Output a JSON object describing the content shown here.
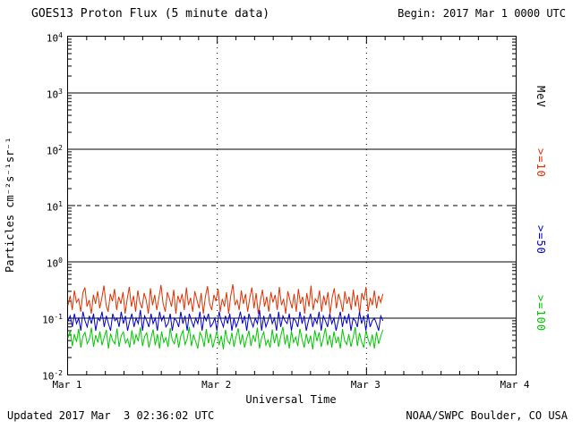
{
  "header": {
    "title": "GOES13 Proton Flux (5 minute data)",
    "begin_label": "Begin: 2017 Mar 1 0000 UTC"
  },
  "footer": {
    "updated": "Updated 2017 Mar  3 02:36:02 UTC",
    "source": "NOAA/SWPC Boulder, CO USA"
  },
  "axes": {
    "y_title": "Particles cm⁻²s⁻¹sr⁻¹",
    "x_title": "Universal Time"
  },
  "right_labels": [
    {
      "text": "MeV",
      "color": "#000000"
    },
    {
      "text": ">=10",
      "color": "#e03000"
    },
    {
      "text": ">=50",
      "color": "#0000cc"
    },
    {
      "text": ">=100",
      "color": "#00c800"
    }
  ],
  "chart_data": {
    "type": "line",
    "title": "GOES13 Proton Flux (5 minute data)",
    "xlabel": "Universal Time",
    "ylabel": "Particles cm-2 s-1 sr-1",
    "y_scale": "log10",
    "y_log_top": 4,
    "y_log_bottom": -2,
    "y_ticks_exponents": [
      4,
      3,
      2,
      1,
      0,
      -1,
      -2
    ],
    "x_range_days": [
      0,
      3
    ],
    "x_tick_labels": [
      "Mar 1",
      "Mar 2",
      "Mar 3",
      "Mar 4"
    ],
    "x_gridlines_days": [
      1,
      2
    ],
    "y_gridlines": [
      {
        "exp": 3,
        "style": "solid"
      },
      {
        "exp": 2,
        "style": "solid"
      },
      {
        "exp": 1,
        "style": "dashed"
      },
      {
        "exp": 0,
        "style": "solid"
      },
      {
        "exp": -1,
        "style": "solid"
      }
    ],
    "series": [
      {
        "name": ">=10 MeV",
        "color": "#e03000",
        "x_start_day": 0.0,
        "x_end_day": 2.11,
        "values": [
          0.17,
          0.25,
          0.14,
          0.31,
          0.19,
          0.22,
          0.13,
          0.28,
          0.35,
          0.16,
          0.21,
          0.12,
          0.26,
          0.18,
          0.3,
          0.15,
          0.23,
          0.38,
          0.17,
          0.13,
          0.27,
          0.2,
          0.33,
          0.14,
          0.24,
          0.18,
          0.29,
          0.12,
          0.22,
          0.36,
          0.16,
          0.25,
          0.13,
          0.31,
          0.19,
          0.15,
          0.28,
          0.21,
          0.12,
          0.34,
          0.17,
          0.26,
          0.14,
          0.23,
          0.39,
          0.18,
          0.13,
          0.29,
          0.22,
          0.16,
          0.32,
          0.12,
          0.25,
          0.19,
          0.27,
          0.14,
          0.35,
          0.17,
          0.23,
          0.13,
          0.3,
          0.21,
          0.15,
          0.28,
          0.12,
          0.24,
          0.37,
          0.18,
          0.14,
          0.26,
          0.2,
          0.33,
          0.13,
          0.22,
          0.16,
          0.29,
          0.12,
          0.25,
          0.4,
          0.17,
          0.21,
          0.14,
          0.31,
          0.18,
          0.27,
          0.13,
          0.23,
          0.35,
          0.15,
          0.28,
          0.12,
          0.2,
          0.32,
          0.16,
          0.24,
          0.13,
          0.29,
          0.19,
          0.26,
          0.14,
          0.36,
          0.17,
          0.22,
          0.12,
          0.3,
          0.21,
          0.15,
          0.27,
          0.13,
          0.33,
          0.18,
          0.24,
          0.12,
          0.28,
          0.16,
          0.38,
          0.14,
          0.22,
          0.19,
          0.31,
          0.13,
          0.25,
          0.17,
          0.29,
          0.12,
          0.23,
          0.34,
          0.15,
          0.27,
          0.2,
          0.13,
          0.3,
          0.18,
          0.24,
          0.14,
          0.32,
          0.16,
          0.26,
          0.12,
          0.28,
          0.21,
          0.36,
          0.13,
          0.23,
          0.17,
          0.31,
          0.15,
          0.25,
          0.19,
          0.27
        ]
      },
      {
        "name": ">=50 MeV",
        "color": "#0000cc",
        "x_start_day": 0.0,
        "x_end_day": 2.11,
        "values": [
          0.09,
          0.11,
          0.07,
          0.12,
          0.08,
          0.1,
          0.06,
          0.13,
          0.09,
          0.07,
          0.11,
          0.08,
          0.12,
          0.06,
          0.1,
          0.09,
          0.13,
          0.07,
          0.11,
          0.08,
          0.06,
          0.12,
          0.09,
          0.1,
          0.07,
          0.13,
          0.08,
          0.11,
          0.06,
          0.09,
          0.12,
          0.07,
          0.1,
          0.08,
          0.14,
          0.06,
          0.11,
          0.09,
          0.07,
          0.12,
          0.08,
          0.1,
          0.06,
          0.13,
          0.09,
          0.11,
          0.07,
          0.08,
          0.12,
          0.06,
          0.1,
          0.09,
          0.07,
          0.13,
          0.08,
          0.11,
          0.06,
          0.12,
          0.09,
          0.07,
          0.1,
          0.08,
          0.13,
          0.06,
          0.11,
          0.09,
          0.12,
          0.07,
          0.08,
          0.1,
          0.06,
          0.13,
          0.09,
          0.07,
          0.11,
          0.08,
          0.12,
          0.06,
          0.1,
          0.07,
          0.09,
          0.13,
          0.08,
          0.11,
          0.06,
          0.12,
          0.09,
          0.07,
          0.1,
          0.08,
          0.14,
          0.06,
          0.11,
          0.07,
          0.09,
          0.12,
          0.08,
          0.1,
          0.06,
          0.13,
          0.07,
          0.11,
          0.09,
          0.08,
          0.12,
          0.06,
          0.1,
          0.09,
          0.07,
          0.13,
          0.08,
          0.11,
          0.06,
          0.09,
          0.12,
          0.07,
          0.1,
          0.08,
          0.13,
          0.06,
          0.11,
          0.09,
          0.07,
          0.12,
          0.08,
          0.1,
          0.06,
          0.09,
          0.13,
          0.07,
          0.11,
          0.08,
          0.12,
          0.06,
          0.1,
          0.09,
          0.07,
          0.13,
          0.08,
          0.11,
          0.06,
          0.12,
          0.07,
          0.09,
          0.1,
          0.08,
          0.06,
          0.11,
          0.09
        ]
      },
      {
        "name": ">=100 MeV",
        "color": "#00c800",
        "x_start_day": 0.0,
        "x_end_day": 2.11,
        "values": [
          0.045,
          0.06,
          0.032,
          0.052,
          0.038,
          0.065,
          0.03,
          0.048,
          0.056,
          0.035,
          0.042,
          0.068,
          0.031,
          0.05,
          0.037,
          0.058,
          0.033,
          0.046,
          0.062,
          0.029,
          0.053,
          0.04,
          0.035,
          0.066,
          0.031,
          0.049,
          0.057,
          0.036,
          0.043,
          0.03,
          0.061,
          0.034,
          0.051,
          0.039,
          0.069,
          0.032,
          0.047,
          0.055,
          0.03,
          0.044,
          0.063,
          0.033,
          0.052,
          0.029,
          0.058,
          0.037,
          0.045,
          0.031,
          0.067,
          0.041,
          0.035,
          0.054,
          0.03,
          0.048,
          0.06,
          0.034,
          0.043,
          0.07,
          0.032,
          0.051,
          0.038,
          0.029,
          0.056,
          0.046,
          0.031,
          0.064,
          0.036,
          0.053,
          0.03,
          0.042,
          0.059,
          0.033,
          0.049,
          0.028,
          0.062,
          0.04,
          0.035,
          0.055,
          0.031,
          0.047,
          0.066,
          0.034,
          0.052,
          0.03,
          0.044,
          0.06,
          0.032,
          0.05,
          0.038,
          0.068,
          0.029,
          0.045,
          0.057,
          0.033,
          0.041,
          0.03,
          0.063,
          0.036,
          0.054,
          0.031,
          0.048,
          0.07,
          0.034,
          0.051,
          0.029,
          0.059,
          0.037,
          0.046,
          0.032,
          0.065,
          0.042,
          0.03,
          0.053,
          0.035,
          0.049,
          0.028,
          0.061,
          0.039,
          0.056,
          0.031,
          0.044,
          0.067,
          0.033,
          0.05,
          0.03,
          0.058,
          0.036,
          0.047,
          0.029,
          0.064,
          0.04,
          0.034,
          0.052,
          0.031,
          0.045,
          0.069,
          0.032,
          0.055,
          0.038,
          0.03,
          0.06,
          0.043,
          0.033,
          0.051,
          0.029,
          0.057,
          0.035,
          0.048,
          0.062
        ]
      }
    ]
  }
}
